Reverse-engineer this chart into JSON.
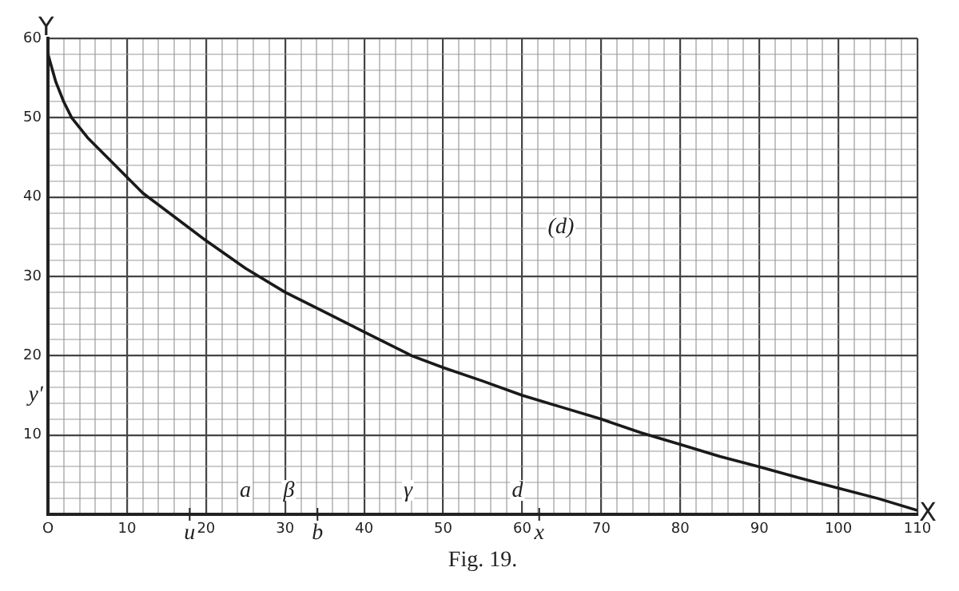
{
  "chart_data": {
    "type": "line",
    "xlabel": "X",
    "ylabel": "Y",
    "x": [
      0,
      1,
      2,
      3,
      5,
      8,
      12,
      16,
      20,
      25,
      30,
      35,
      40,
      46,
      50,
      55,
      60,
      65,
      70,
      75,
      80,
      85,
      90,
      95,
      100,
      105,
      110
    ],
    "series": [
      {
        "color": "#1a1a1a",
        "values": [
          58,
          54.5,
          52,
          50,
          47.5,
          44.5,
          40.5,
          37.5,
          34.5,
          31,
          28,
          25.5,
          23,
          20,
          18.5,
          16.8,
          15,
          13.5,
          12,
          10.3,
          8.8,
          7.3,
          6,
          4.6,
          3.3,
          2,
          0.5
        ]
      }
    ],
    "xlim": [
      0,
      110
    ],
    "ylim": [
      0,
      60
    ],
    "xticks": [
      {
        "value": 0,
        "label": "O"
      },
      {
        "value": 2,
        "label": null
      },
      {
        "value": 4,
        "label": null
      },
      {
        "value": 6,
        "label": null
      },
      {
        "value": 8,
        "label": null
      },
      10,
      {
        "value": 12,
        "label": null
      },
      {
        "value": 14,
        "label": null
      },
      {
        "value": 16,
        "label": null
      },
      {
        "value": 18,
        "label": null
      },
      20,
      {
        "value": 22,
        "label": null
      },
      {
        "value": 24,
        "label": null
      },
      {
        "value": 26,
        "label": null
      },
      {
        "value": 28,
        "label": null
      },
      30,
      {
        "value": 32,
        "label": null
      },
      {
        "value": 34,
        "label": null
      },
      {
        "value": 36,
        "label": null
      },
      {
        "value": 38,
        "label": null
      },
      40,
      {
        "value": 42,
        "label": null
      },
      {
        "value": 44,
        "label": null
      },
      {
        "value": 46,
        "label": null
      },
      {
        "value": 48,
        "label": null
      },
      50,
      {
        "value": 52,
        "label": null
      },
      {
        "value": 54,
        "label": null
      },
      {
        "value": 56,
        "label": null
      },
      {
        "value": 58,
        "label": null
      },
      60,
      {
        "value": 62,
        "label": null
      },
      {
        "value": 64,
        "label": null
      },
      {
        "value": 66,
        "label": null
      },
      {
        "value": 68,
        "label": null
      },
      70,
      {
        "value": 72,
        "label": null
      },
      {
        "value": 74,
        "label": null
      },
      {
        "value": 76,
        "label": null
      },
      {
        "value": 78,
        "label": null
      },
      80,
      {
        "value": 82,
        "label": null
      },
      {
        "value": 84,
        "label": null
      },
      {
        "value": 86,
        "label": null
      },
      {
        "value": 88,
        "label": null
      },
      90,
      {
        "value": 92,
        "label": null
      },
      {
        "value": 94,
        "label": null
      },
      {
        "value": 96,
        "label": null
      },
      {
        "value": 98,
        "label": null
      },
      100,
      {
        "value": 102,
        "label": null
      },
      {
        "value": 104,
        "label": null
      },
      {
        "value": 106,
        "label": null
      },
      {
        "value": 108,
        "label": null
      },
      110
    ],
    "yticks": [
      {
        "value": 0,
        "label": null
      },
      {
        "value": 2,
        "label": null
      },
      {
        "value": 4,
        "label": null
      },
      {
        "value": 6,
        "label": null
      },
      {
        "value": 8,
        "label": null
      },
      10,
      {
        "value": 12,
        "label": null
      },
      {
        "value": 14,
        "label": null
      },
      {
        "value": 16,
        "label": null
      },
      {
        "value": 18,
        "label": null
      },
      20,
      {
        "value": 22,
        "label": null
      },
      {
        "value": 24,
        "label": null
      },
      {
        "value": 26,
        "label": null
      },
      {
        "value": 28,
        "label": null
      },
      30,
      {
        "value": 32,
        "label": null
      },
      {
        "value": 34,
        "label": null
      },
      {
        "value": 36,
        "label": null
      },
      {
        "value": 38,
        "label": null
      },
      40,
      {
        "value": 42,
        "label": null
      },
      {
        "value": 44,
        "label": null
      },
      {
        "value": 46,
        "label": null
      },
      {
        "value": 48,
        "label": null
      },
      50,
      {
        "value": 52,
        "label": null
      },
      {
        "value": 54,
        "label": null
      },
      {
        "value": 56,
        "label": null
      },
      {
        "value": 58,
        "label": null
      },
      60
    ],
    "grid": true,
    "legend": false,
    "marker": "none",
    "line_style": "solid",
    "annotations": [
      "(d)",
      "a",
      "β",
      "γ",
      "d",
      "u",
      "b",
      "x",
      "y′",
      "Fig. 19."
    ]
  }
}
